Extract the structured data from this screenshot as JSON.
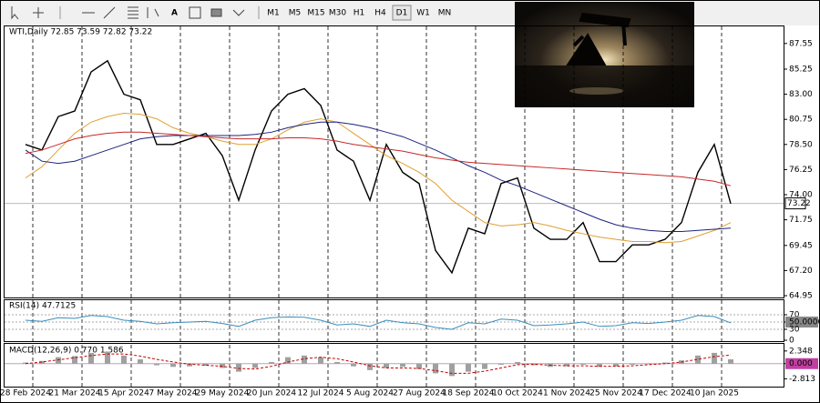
{
  "toolbar": [
    "M1",
    "M5",
    "M15",
    "M30",
    "H1",
    "H4",
    "D1",
    "W1",
    "MN"
  ],
  "active_timeframe": "D1",
  "chart_data": [
    {
      "type": "line",
      "title": "WTI,Daily 72.85 73.59 72.82 73.22",
      "categories": [
        "28 Feb 2024",
        null,
        null,
        "21 Mar 2024",
        null,
        null,
        "15 Apr 2024",
        null,
        null,
        "7 May 2024",
        null,
        null,
        "29 May 2024",
        null,
        null,
        "20 Jun 2024",
        null,
        null,
        "12 Jul 2024",
        null,
        null,
        "5 Aug 2024",
        null,
        null,
        "27 Aug 2024",
        null,
        null,
        "18 Sep 2024",
        null,
        null,
        "10 Oct 2024",
        null,
        null,
        "1 Nov 2024",
        null,
        null,
        "25 Nov 2024",
        null,
        null,
        "17 Dec 2024",
        null,
        null,
        "10 Jan 2025",
        null
      ],
      "series": [
        {
          "color": "#000000",
          "values": [
            78.5,
            78,
            81,
            81.5,
            85,
            86,
            83,
            82.5,
            78.5,
            78.5,
            79,
            79.5,
            77.5,
            73.5,
            78,
            81.5,
            83,
            83.5,
            82,
            78,
            77,
            73.5,
            78.5,
            76,
            75,
            69,
            67,
            71,
            70.5,
            75,
            75.5,
            71,
            70,
            70,
            71.5,
            68,
            68,
            69.5,
            69.5,
            70,
            71.5,
            76,
            78.5,
            73.2
          ]
        },
        {
          "color": "#e0a030",
          "values": [
            75.5,
            76.5,
            78,
            79.5,
            80.5,
            81,
            81.3,
            81.2,
            80.8,
            80,
            79.5,
            79.2,
            78.8,
            78.5,
            78.5,
            79,
            79.8,
            80.5,
            80.8,
            80.5,
            79.5,
            78.5,
            77.5,
            76.8,
            76,
            75,
            73.5,
            72.5,
            71.5,
            71.2,
            71.3,
            71.5,
            71.2,
            70.8,
            70.5,
            70.2,
            70,
            69.8,
            69.8,
            69.7,
            69.8,
            70.3,
            70.8,
            71.5
          ]
        },
        {
          "color": "#1a237e",
          "values": [
            78,
            77,
            76.8,
            77,
            77.5,
            78,
            78.5,
            79,
            79.2,
            79.3,
            79.3,
            79.3,
            79.3,
            79.3,
            79.4,
            79.6,
            80,
            80.3,
            80.5,
            80.5,
            80.3,
            80,
            79.6,
            79.2,
            78.6,
            78,
            77.3,
            76.6,
            76,
            75.3,
            74.8,
            74.2,
            73.6,
            73,
            72.4,
            71.8,
            71.3,
            71,
            70.8,
            70.7,
            70.7,
            70.8,
            70.9,
            71
          ]
        },
        {
          "color": "#c62828",
          "values": [
            77.7,
            78,
            78.5,
            79,
            79.3,
            79.5,
            79.6,
            79.6,
            79.5,
            79.4,
            79.3,
            79.2,
            79.1,
            79,
            79,
            79,
            79.1,
            79.1,
            79,
            78.8,
            78.5,
            78.3,
            78.1,
            77.9,
            77.6,
            77.3,
            77.1,
            76.9,
            76.8,
            76.7,
            76.6,
            76.5,
            76.4,
            76.3,
            76.2,
            76.1,
            76,
            75.9,
            75.8,
            75.7,
            75.6,
            75.4,
            75.2,
            74.8
          ]
        }
      ],
      "last_price": {
        "value": 73.22,
        "label": "73.22"
      },
      "ylim": [
        64.87,
        89.0
      ],
      "yticks": [
        87.55,
        85.25,
        {
          "value": 83,
          "label": "83.00"
        },
        80.75,
        {
          "value": 78.5,
          "label": "78.50"
        },
        76.25,
        {
          "value": 74,
          "label": "74.00"
        },
        71.75,
        69.45,
        {
          "value": 67.2,
          "label": "67.20"
        },
        64.95
      ]
    },
    {
      "type": "line",
      "title": "RSI(14) 47.7125",
      "series": [
        {
          "color": "#3c8dbc",
          "values": [
            55,
            52,
            62,
            60,
            68,
            65,
            55,
            52,
            45,
            48,
            50,
            52,
            46,
            38,
            55,
            62,
            64,
            63,
            55,
            42,
            45,
            38,
            55,
            48,
            45,
            35,
            30,
            48,
            45,
            58,
            55,
            40,
            42,
            45,
            50,
            38,
            40,
            48,
            46,
            50,
            55,
            68,
            65,
            47.7
          ]
        }
      ],
      "ylim": [
        0,
        100
      ],
      "yticks": [
        70,
        {
          "value": 50,
          "label": "50.0000"
        },
        30,
        0
      ]
    },
    {
      "type": "bar",
      "title": "MACD(12,26,9) 0.770 1.586",
      "series": [
        {
          "color": "#a0a0a0",
          "values": [
            0.2,
            0.5,
            1.2,
            1.4,
            2,
            2.2,
            1.5,
            0.8,
            -0.3,
            -0.6,
            -0.5,
            -0.4,
            -0.8,
            -1.5,
            -0.8,
            0.3,
            1.2,
            1.5,
            1.2,
            0.3,
            -0.5,
            -1.2,
            -0.8,
            -0.6,
            -1,
            -1.8,
            -2.3,
            -1.5,
            -1,
            -0.2,
            0.3,
            -0.3,
            -0.6,
            -0.5,
            -0.2,
            -0.6,
            -0.5,
            -0.2,
            -0.1,
            0.2,
            0.6,
            1.5,
            2,
            0.8
          ]
        },
        {
          "color": "#c00000",
          "values": [
            0,
            0.3,
            0.7,
            1.1,
            1.5,
            1.8,
            1.8,
            1.4,
            0.8,
            0.3,
            -0.1,
            -0.3,
            -0.5,
            -0.9,
            -1,
            -0.5,
            0.3,
            0.9,
            1.2,
            0.9,
            0.3,
            -0.4,
            -0.8,
            -0.8,
            -0.9,
            -1.3,
            -1.8,
            -1.8,
            -1.4,
            -0.8,
            -0.2,
            -0.1,
            -0.3,
            -0.4,
            -0.4,
            -0.5,
            -0.5,
            -0.4,
            -0.2,
            0,
            0.3,
            0.8,
            1.3,
            1.6
          ]
        }
      ],
      "ylim": [
        -4.1,
        3.5
      ],
      "yticks": [
        2.348,
        {
          "value": 0,
          "label": "0.000"
        },
        -2.813
      ]
    }
  ]
}
